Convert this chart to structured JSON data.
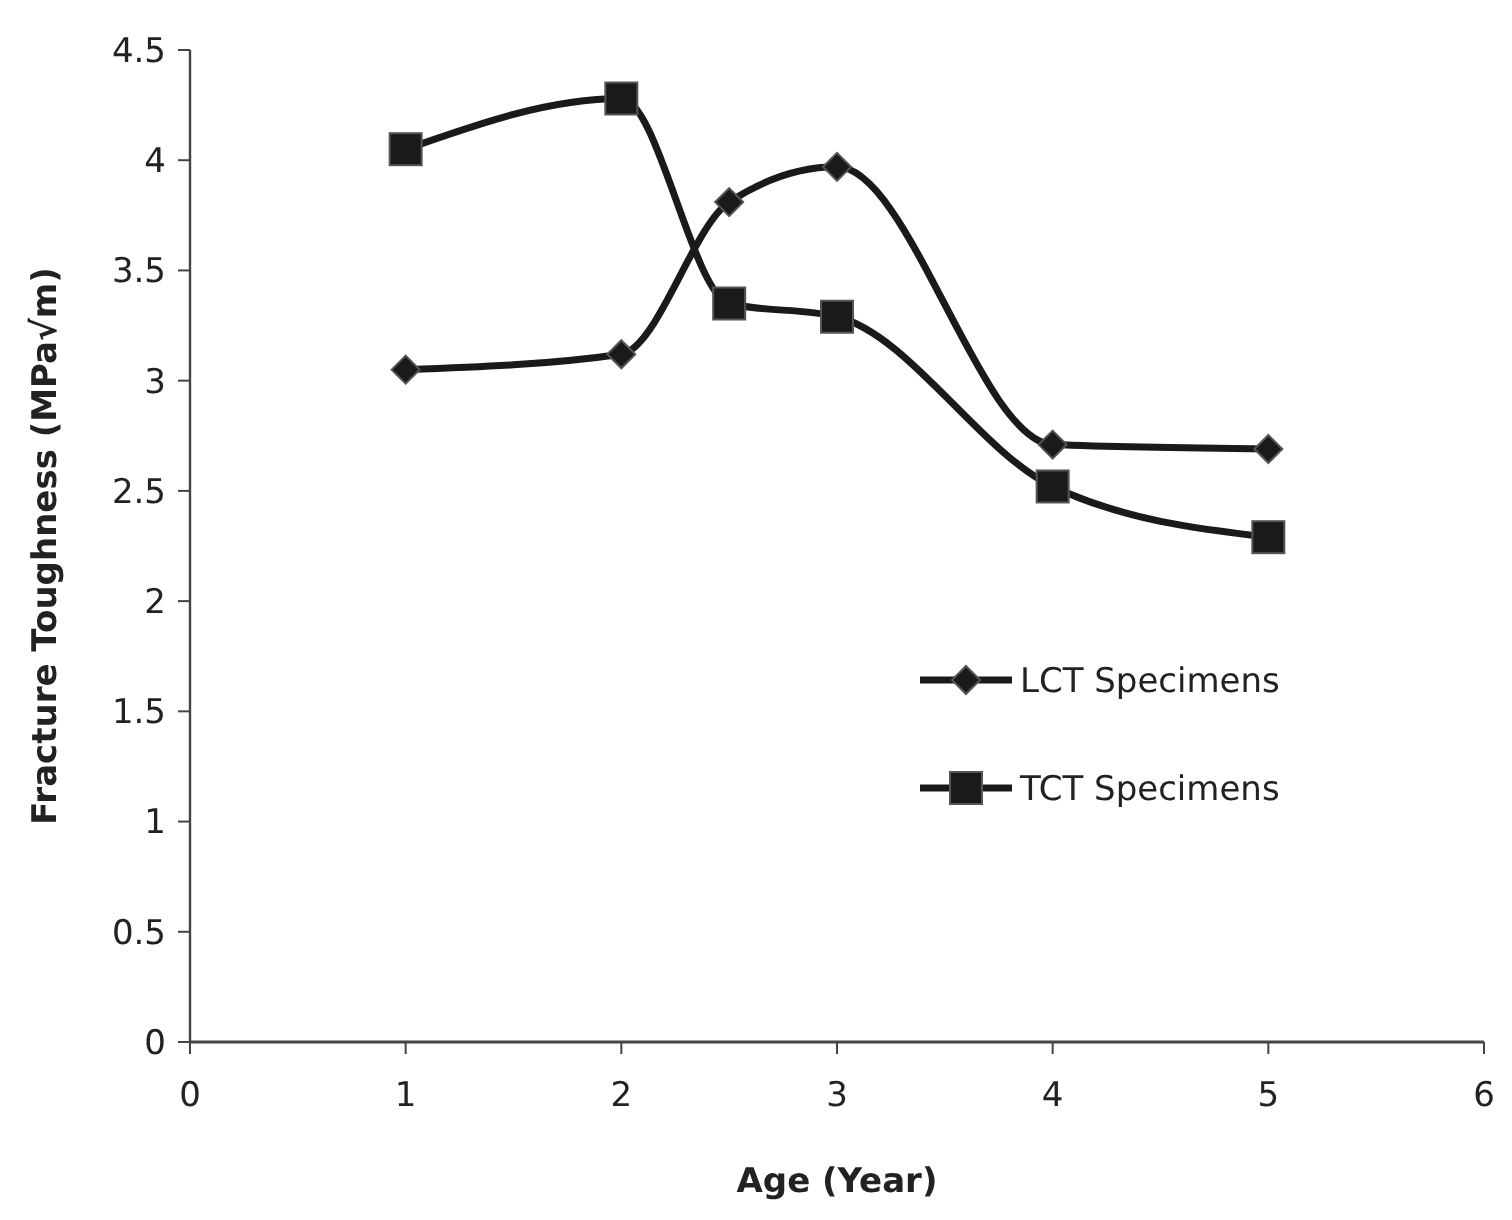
{
  "chart_data": {
    "type": "line",
    "xlabel": "Age (Year)",
    "ylabel": "Fracture Toughness (MPa√m)",
    "xlim": [
      0,
      6
    ],
    "xticks": [
      0,
      1,
      2,
      3,
      4,
      5,
      6
    ],
    "ylim": [
      0,
      4.5
    ],
    "yticks": [
      0,
      0.5,
      1,
      1.5,
      2,
      2.5,
      3,
      3.5,
      4,
      4.5
    ],
    "grid": false,
    "legend": "right",
    "line_style": "solid",
    "x": [
      1,
      2,
      2.5,
      3,
      4,
      5
    ],
    "series": [
      {
        "name": "LCT Specimens",
        "color": "#1a1a1a",
        "marker": "diamond",
        "values": [
          3.05,
          3.12,
          3.81,
          3.97,
          2.71,
          2.69
        ]
      },
      {
        "name": "TCT Specimens",
        "color": "#1a1a1a",
        "marker": "square",
        "values": [
          4.05,
          4.28,
          3.35,
          3.29,
          2.52,
          2.29
        ]
      }
    ]
  }
}
